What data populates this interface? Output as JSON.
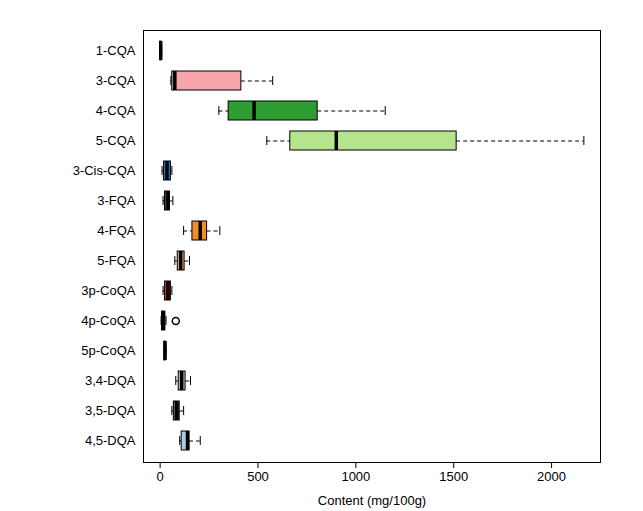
{
  "chart_data": {
    "type": "box",
    "orientation": "horizontal",
    "x_label": "Content (mg/100g)",
    "categories": [
      "1-CQA",
      "3-CQA",
      "4-CQA",
      "5-CQA",
      "3-Cis-CQA",
      "3-FQA",
      "4-FQA",
      "5-FQA",
      "3p-CoQA",
      "4p-CoQA",
      "5p-CoQA",
      "3,4-DQA",
      "3,5-DQA",
      "4,5-DQA"
    ],
    "min": [
      0,
      55,
      300,
      545,
      10,
      15,
      120,
      75,
      15,
      5,
      20,
      80,
      60,
      100
    ],
    "q1": [
      1,
      62,
      350,
      665,
      20,
      25,
      165,
      90,
      25,
      10,
      22,
      95,
      70,
      110
    ],
    "median": [
      3,
      75,
      480,
      900,
      35,
      40,
      205,
      105,
      40,
      18,
      25,
      110,
      85,
      140
    ],
    "q3": [
      6,
      415,
      805,
      1515,
      55,
      50,
      240,
      125,
      55,
      25,
      28,
      130,
      100,
      150
    ],
    "max": [
      8,
      575,
      1150,
      2165,
      60,
      65,
      305,
      150,
      60,
      30,
      30,
      155,
      120,
      205
    ],
    "outliers": [
      [],
      [],
      [],
      [],
      [],
      [],
      [],
      [],
      [],
      [
        80
      ],
      [],
      [],
      [],
      []
    ],
    "colors": [
      "#222222",
      "#f6a5aa",
      "#2e9e32",
      "#b5e48c",
      "#2c7fb8",
      "#444444",
      "#f28a2e",
      "#e8a06f",
      "#d7262b",
      "#222222",
      "#222222",
      "#bdbdbd",
      "#555555",
      "#a6cee3"
    ],
    "xlim": [
      -85,
      2250
    ],
    "xticks": [
      0,
      500,
      1000,
      1500,
      2000
    ],
    "grid": false
  }
}
